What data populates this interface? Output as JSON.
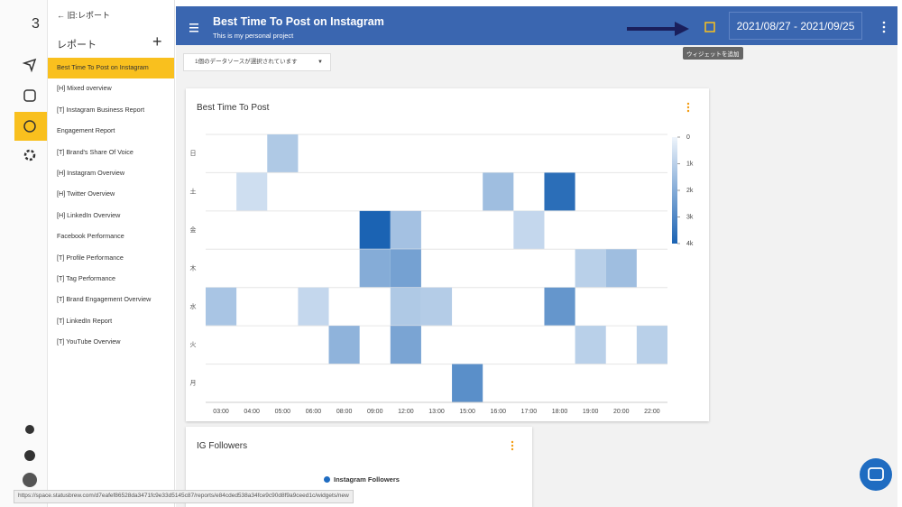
{
  "sidebar": {
    "back": "旧:レポート",
    "heading": "レポート",
    "items": [
      "Best Time To Post on Instagram",
      "[H] Mixed overview",
      "[T] Instagram Business Report",
      "Engagement Report",
      "[T] Brand's Share Of Voice",
      "[H] Instagram Overview",
      "[H] Twitter Overview",
      "[H] LinkedIn Overview",
      "Facebook Performance",
      "[T] Profile Performance",
      "[T] Tag Performance",
      "[T] Brand Engagement Overview",
      "[T] LinkedIn Report",
      "[T] YouTube Overview"
    ]
  },
  "header": {
    "title": "Best Time To Post on Instagram",
    "subtitle": "This is my personal project",
    "date_range": "2021/08/27 - 2021/09/25",
    "tooltip": "ウィジェットを追加"
  },
  "data_source": "1個のデータソースが選択されています",
  "chart_data": {
    "type": "heatmap",
    "title": "Best Time To Post",
    "rows": [
      "日",
      "土",
      "金",
      "木",
      "水",
      "火",
      "月"
    ],
    "columns": [
      "03:00",
      "04:00",
      "05:00",
      "06:00",
      "08:00",
      "09:00",
      "12:00",
      "13:00",
      "15:00",
      "16:00",
      "17:00",
      "18:00",
      "19:00",
      "20:00",
      "22:00"
    ],
    "values": [
      [
        null,
        null,
        1200,
        null,
        null,
        null,
        null,
        null,
        null,
        null,
        null,
        null,
        null,
        null,
        null
      ],
      [
        null,
        600,
        null,
        null,
        null,
        null,
        null,
        null,
        null,
        1500,
        null,
        3700,
        null,
        null,
        null
      ],
      [
        null,
        null,
        null,
        null,
        null,
        4000,
        1400,
        null,
        null,
        null,
        800,
        null,
        null,
        null,
        null
      ],
      [
        null,
        null,
        null,
        null,
        null,
        2000,
        2300,
        null,
        null,
        null,
        null,
        null,
        1000,
        1500,
        null
      ],
      [
        1300,
        null,
        null,
        800,
        null,
        null,
        1200,
        1100,
        null,
        null,
        null,
        2600,
        null,
        null,
        null
      ],
      [
        null,
        null,
        null,
        null,
        1800,
        null,
        2200,
        null,
        null,
        null,
        null,
        null,
        1000,
        null,
        1000
      ],
      [
        null,
        null,
        null,
        null,
        null,
        null,
        null,
        null,
        2800,
        null,
        null,
        null,
        null,
        null,
        null
      ]
    ],
    "colorlim": [
      0,
      4000
    ],
    "colorticks": [
      0,
      {
        "value": 1000,
        "label": "1k"
      },
      {
        "value": 2000,
        "label": "2k"
      },
      {
        "value": 3000,
        "label": "3k"
      },
      {
        "value": 4000,
        "label": "4k"
      }
    ],
    "color_range": [
      "#eef4fb",
      "#1b63b3"
    ],
    "grid": true
  },
  "followers_widget": {
    "title": "IG Followers",
    "legend": "Instagram Followers"
  },
  "status_url": "https://space.statusbrew.com/d7eafef86528da3471fc9e33d5145c87/reports/e84cded538a34fce9c90d8f9a9ceed1c/widgets/new"
}
